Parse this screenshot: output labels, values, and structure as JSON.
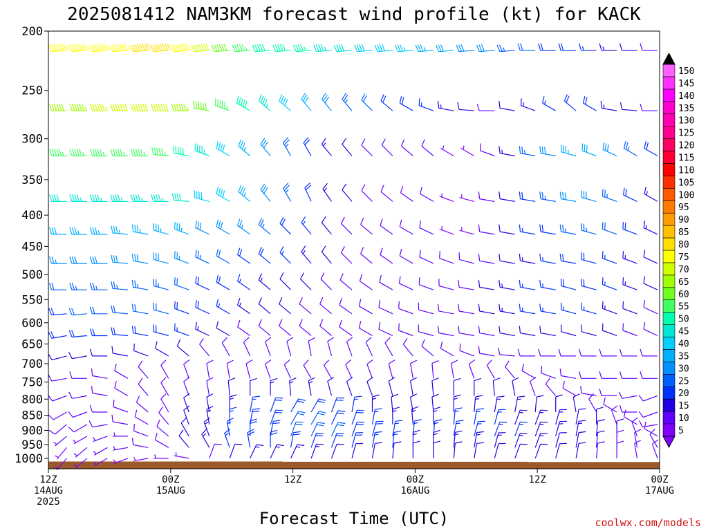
{
  "chart_data": {
    "type": "wind-barb time-height profile",
    "title": "2025081412 NAM3KM forecast wind profile (kt) for KACK",
    "xlabel": "Forecast Time (UTC)",
    "credit": "coolwx.com/models",
    "y_ticks": [
      200,
      250,
      300,
      350,
      400,
      450,
      500,
      550,
      600,
      650,
      700,
      750,
      800,
      850,
      900,
      950,
      1000
    ],
    "ylim": [
      200,
      1040
    ],
    "y_scale": "log-pressure (mb)",
    "x_ticks": [
      {
        "hour": 0,
        "line1": "12Z",
        "line2": "14AUG",
        "line3": "2025"
      },
      {
        "hour": 12,
        "line1": "00Z",
        "line2": "15AUG",
        "line3": ""
      },
      {
        "hour": 24,
        "line1": "12Z",
        "line2": "",
        "line3": ""
      },
      {
        "hour": 36,
        "line1": "00Z",
        "line2": "16AUG",
        "line3": ""
      },
      {
        "hour": 48,
        "line1": "12Z",
        "line2": "",
        "line3": ""
      },
      {
        "hour": 60,
        "line1": "00Z",
        "line2": "17AUG",
        "line3": ""
      }
    ],
    "xlim": [
      0,
      60
    ],
    "time_step_hours": 2,
    "colorbar": {
      "values": [
        5,
        10,
        15,
        20,
        25,
        30,
        35,
        40,
        45,
        50,
        55,
        60,
        65,
        70,
        75,
        80,
        85,
        90,
        95,
        100,
        105,
        110,
        115,
        120,
        125,
        130,
        135,
        140,
        145,
        150
      ],
      "colors": [
        "#8000ff",
        "#6000ff",
        "#2000e0",
        "#0030ff",
        "#0060ff",
        "#0090ff",
        "#00b0ff",
        "#00d0ff",
        "#00e8d0",
        "#00ffb0",
        "#40ff60",
        "#70ff20",
        "#a0ff00",
        "#d0ff00",
        "#ffff00",
        "#ffe000",
        "#ffc000",
        "#ff9c00",
        "#ff7a00",
        "#ff5a00",
        "#ff3000",
        "#ff0000",
        "#ff0030",
        "#ff0060",
        "#ff0090",
        "#ff00b0",
        "#ff00d0",
        "#ff00ff",
        "#ff30ff",
        "#ff60ff"
      ]
    },
    "surface_pressure": [
      1012,
      1012,
      1012,
      1012,
      1012,
      1012,
      1012,
      1012,
      1012,
      1012,
      1012,
      1012,
      1013,
      1013,
      1013,
      1013,
      1013,
      1013,
      1013,
      1013,
      1013,
      1013,
      1013,
      1013,
      1014,
      1014,
      1014,
      1014,
      1014,
      1014,
      1014
    ],
    "levels": [
      {
        "p": 215,
        "spd": [
          75,
          75,
          75,
          75,
          75,
          78,
          80,
          75,
          68,
          60,
          55,
          50,
          48,
          46,
          44,
          42,
          40,
          38,
          36,
          34,
          32,
          30,
          28,
          25,
          22,
          20,
          18,
          16,
          14,
          12,
          10
        ],
        "dir": [
          265,
          265,
          265,
          265,
          265,
          265,
          265,
          265,
          265,
          265,
          265,
          265,
          265,
          265,
          265,
          265,
          265,
          265,
          265,
          265,
          265,
          265,
          265,
          265,
          270,
          270,
          270,
          270,
          270,
          270,
          270
        ]
      },
      {
        "p": 270,
        "spd": [
          60,
          62,
          65,
          66,
          68,
          70,
          70,
          65,
          60,
          55,
          50,
          45,
          40,
          32,
          28,
          24,
          22,
          20,
          18,
          16,
          14,
          12,
          10,
          12,
          14,
          16,
          20,
          18,
          14,
          12,
          10
        ],
        "dir": [
          270,
          270,
          270,
          270,
          270,
          270,
          270,
          270,
          280,
          290,
          300,
          310,
          310,
          320,
          320,
          320,
          315,
          310,
          300,
          290,
          280,
          275,
          270,
          280,
          290,
          300,
          310,
          300,
          280,
          275,
          270
        ]
      },
      {
        "p": 320,
        "spd": [
          55,
          55,
          55,
          55,
          55,
          55,
          55,
          50,
          45,
          40,
          35,
          30,
          25,
          20,
          15,
          12,
          10,
          10,
          10,
          8,
          5,
          5,
          8,
          15,
          25,
          30,
          35,
          32,
          28,
          25,
          20
        ],
        "dir": [
          270,
          270,
          270,
          270,
          270,
          270,
          275,
          280,
          290,
          300,
          310,
          320,
          330,
          330,
          320,
          320,
          315,
          315,
          310,
          310,
          300,
          300,
          290,
          280,
          280,
          280,
          285,
          290,
          295,
          300,
          300
        ]
      },
      {
        "p": 380,
        "spd": [
          40,
          42,
          45,
          45,
          45,
          45,
          45,
          42,
          40,
          38,
          35,
          30,
          25,
          20,
          15,
          12,
          10,
          8,
          8,
          8,
          5,
          5,
          8,
          12,
          18,
          25,
          30,
          28,
          25,
          20,
          15
        ],
        "dir": [
          270,
          270,
          270,
          270,
          270,
          270,
          270,
          275,
          285,
          300,
          310,
          320,
          330,
          335,
          325,
          320,
          315,
          310,
          305,
          300,
          290,
          285,
          280,
          280,
          280,
          280,
          280,
          285,
          290,
          295,
          300
        ]
      },
      {
        "p": 430,
        "spd": [
          30,
          32,
          35,
          35,
          35,
          35,
          35,
          33,
          30,
          28,
          26,
          24,
          20,
          16,
          12,
          10,
          8,
          8,
          8,
          8,
          5,
          5,
          8,
          12,
          16,
          20,
          24,
          24,
          22,
          18,
          15
        ],
        "dir": [
          270,
          270,
          270,
          270,
          275,
          280,
          285,
          290,
          295,
          300,
          305,
          310,
          315,
          320,
          320,
          315,
          310,
          305,
          300,
          295,
          290,
          285,
          280,
          280,
          280,
          280,
          280,
          285,
          290,
          290,
          295
        ]
      },
      {
        "p": 480,
        "spd": [
          25,
          26,
          28,
          28,
          28,
          28,
          28,
          26,
          24,
          22,
          20,
          18,
          16,
          14,
          12,
          10,
          10,
          10,
          8,
          8,
          8,
          8,
          10,
          12,
          14,
          16,
          18,
          18,
          16,
          14,
          12
        ],
        "dir": [
          270,
          270,
          270,
          270,
          275,
          280,
          285,
          290,
          295,
          300,
          305,
          310,
          315,
          320,
          320,
          315,
          310,
          305,
          300,
          295,
          290,
          285,
          280,
          280,
          280,
          280,
          280,
          285,
          290,
          290,
          295
        ]
      },
      {
        "p": 530,
        "spd": [
          22,
          22,
          24,
          24,
          24,
          24,
          24,
          22,
          20,
          18,
          16,
          14,
          12,
          12,
          10,
          10,
          10,
          10,
          10,
          10,
          10,
          10,
          12,
          14,
          16,
          16,
          18,
          18,
          16,
          14,
          12
        ],
        "dir": [
          270,
          270,
          270,
          270,
          275,
          280,
          285,
          290,
          295,
          300,
          305,
          310,
          315,
          315,
          315,
          310,
          305,
          300,
          295,
          290,
          285,
          280,
          280,
          280,
          280,
          280,
          285,
          285,
          290,
          290,
          295
        ]
      },
      {
        "p": 580,
        "spd": [
          20,
          20,
          22,
          22,
          22,
          22,
          22,
          20,
          18,
          16,
          14,
          12,
          12,
          10,
          10,
          10,
          10,
          10,
          10,
          10,
          10,
          10,
          12,
          14,
          16,
          16,
          16,
          16,
          14,
          12,
          10
        ],
        "dir": [
          260,
          265,
          265,
          270,
          275,
          280,
          285,
          290,
          295,
          300,
          305,
          310,
          310,
          310,
          310,
          305,
          300,
          295,
          290,
          285,
          280,
          280,
          280,
          280,
          280,
          280,
          285,
          285,
          290,
          290,
          295
        ]
      },
      {
        "p": 630,
        "spd": [
          18,
          18,
          18,
          18,
          18,
          18,
          18,
          16,
          14,
          12,
          10,
          10,
          10,
          10,
          10,
          10,
          10,
          10,
          10,
          10,
          10,
          10,
          10,
          12,
          12,
          12,
          12,
          12,
          12,
          10,
          10
        ],
        "dir": [
          260,
          260,
          265,
          270,
          275,
          280,
          285,
          290,
          295,
          300,
          305,
          310,
          310,
          310,
          310,
          305,
          300,
          295,
          290,
          285,
          280,
          280,
          280,
          280,
          280,
          280,
          285,
          285,
          290,
          290,
          295
        ]
      },
      {
        "p": 680,
        "spd": [
          12,
          12,
          12,
          12,
          12,
          12,
          12,
          12,
          10,
          10,
          10,
          10,
          10,
          10,
          10,
          10,
          10,
          10,
          10,
          10,
          10,
          10,
          10,
          10,
          10,
          10,
          10,
          10,
          10,
          8,
          8
        ],
        "dir": [
          250,
          255,
          260,
          270,
          280,
          290,
          300,
          310,
          320,
          330,
          335,
          340,
          345,
          350,
          345,
          340,
          335,
          330,
          320,
          310,
          300,
          290,
          280,
          275,
          270,
          270,
          270,
          270,
          270,
          270,
          270
        ]
      },
      {
        "p": 740,
        "spd": [
          10,
          10,
          10,
          10,
          8,
          8,
          8,
          8,
          8,
          10,
          10,
          10,
          10,
          10,
          10,
          10,
          10,
          10,
          10,
          10,
          10,
          10,
          10,
          10,
          8,
          8,
          8,
          8,
          8,
          8,
          8
        ],
        "dir": [
          250,
          260,
          270,
          280,
          300,
          320,
          330,
          340,
          350,
          350,
          345,
          340,
          335,
          330,
          330,
          335,
          340,
          345,
          350,
          355,
          350,
          340,
          330,
          320,
          300,
          290,
          280,
          270,
          270,
          270,
          270
        ]
      },
      {
        "p": 790,
        "spd": [
          8,
          8,
          8,
          8,
          8,
          8,
          10,
          10,
          10,
          12,
          12,
          14,
          14,
          14,
          12,
          12,
          12,
          12,
          12,
          12,
          12,
          12,
          12,
          12,
          10,
          10,
          10,
          10,
          10,
          8,
          8
        ],
        "dir": [
          240,
          250,
          260,
          280,
          300,
          320,
          330,
          340,
          350,
          355,
          360,
          360,
          355,
          350,
          345,
          340,
          340,
          345,
          350,
          355,
          360,
          360,
          355,
          350,
          340,
          320,
          300,
          280,
          270,
          260,
          250
        ]
      },
      {
        "p": 840,
        "spd": [
          8,
          8,
          8,
          8,
          8,
          10,
          10,
          12,
          12,
          14,
          16,
          18,
          20,
          20,
          18,
          16,
          14,
          12,
          12,
          12,
          14,
          14,
          14,
          14,
          12,
          12,
          12,
          10,
          10,
          8,
          8
        ],
        "dir": [
          230,
          240,
          250,
          270,
          290,
          310,
          330,
          340,
          350,
          360,
          10,
          20,
          30,
          30,
          20,
          10,
          360,
          355,
          350,
          355,
          360,
          5,
          10,
          10,
          5,
          360,
          350,
          330,
          300,
          270,
          250
        ]
      },
      {
        "p": 880,
        "spd": [
          8,
          8,
          8,
          8,
          8,
          10,
          10,
          12,
          14,
          16,
          18,
          20,
          22,
          22,
          20,
          18,
          16,
          14,
          14,
          14,
          16,
          16,
          16,
          14,
          14,
          14,
          12,
          12,
          10,
          10,
          8
        ],
        "dir": [
          220,
          230,
          240,
          260,
          280,
          300,
          320,
          340,
          350,
          360,
          10,
          20,
          30,
          30,
          25,
          20,
          10,
          360,
          355,
          360,
          5,
          10,
          15,
          20,
          20,
          15,
          10,
          360,
          340,
          300,
          260
        ]
      },
      {
        "p": 920,
        "spd": [
          6,
          6,
          6,
          6,
          6,
          8,
          10,
          12,
          14,
          16,
          18,
          20,
          22,
          22,
          22,
          20,
          18,
          16,
          16,
          16,
          16,
          16,
          16,
          16,
          14,
          14,
          14,
          12,
          12,
          10,
          8
        ],
        "dir": [
          220,
          230,
          240,
          250,
          270,
          290,
          310,
          330,
          340,
          350,
          360,
          10,
          20,
          25,
          25,
          20,
          15,
          10,
          5,
          5,
          10,
          15,
          20,
          20,
          20,
          15,
          10,
          5,
          360,
          340,
          300
        ]
      },
      {
        "p": 960,
        "spd": [
          5,
          5,
          6,
          6,
          6,
          8,
          10,
          12,
          14,
          16,
          18,
          20,
          20,
          20,
          20,
          18,
          16,
          16,
          14,
          14,
          14,
          14,
          14,
          14,
          14,
          12,
          12,
          12,
          10,
          10,
          8
        ],
        "dir": [
          210,
          220,
          230,
          240,
          260,
          280,
          300,
          320,
          330,
          340,
          350,
          360,
          10,
          20,
          20,
          15,
          10,
          5,
          360,
          360,
          5,
          10,
          15,
          20,
          20,
          15,
          10,
          5,
          360,
          350,
          330
        ]
      },
      {
        "p": 1000,
        "spd": [
          5,
          5,
          5,
          5,
          5,
          5,
          5,
          5,
          10,
          12,
          14,
          14,
          14,
          14,
          12,
          12,
          12,
          12,
          12,
          12,
          12,
          12,
          12,
          12,
          12,
          12,
          12,
          10,
          10,
          10,
          10
        ],
        "dir": [
          210,
          220,
          230,
          240,
          250,
          260,
          270,
          280,
          20,
          20,
          25,
          25,
          25,
          20,
          20,
          15,
          10,
          5,
          360,
          360,
          5,
          10,
          15,
          20,
          20,
          15,
          10,
          5,
          360,
          350,
          340
        ]
      }
    ]
  },
  "palette": {
    "surface": "#9c5a2b",
    "frame": "#000000"
  }
}
